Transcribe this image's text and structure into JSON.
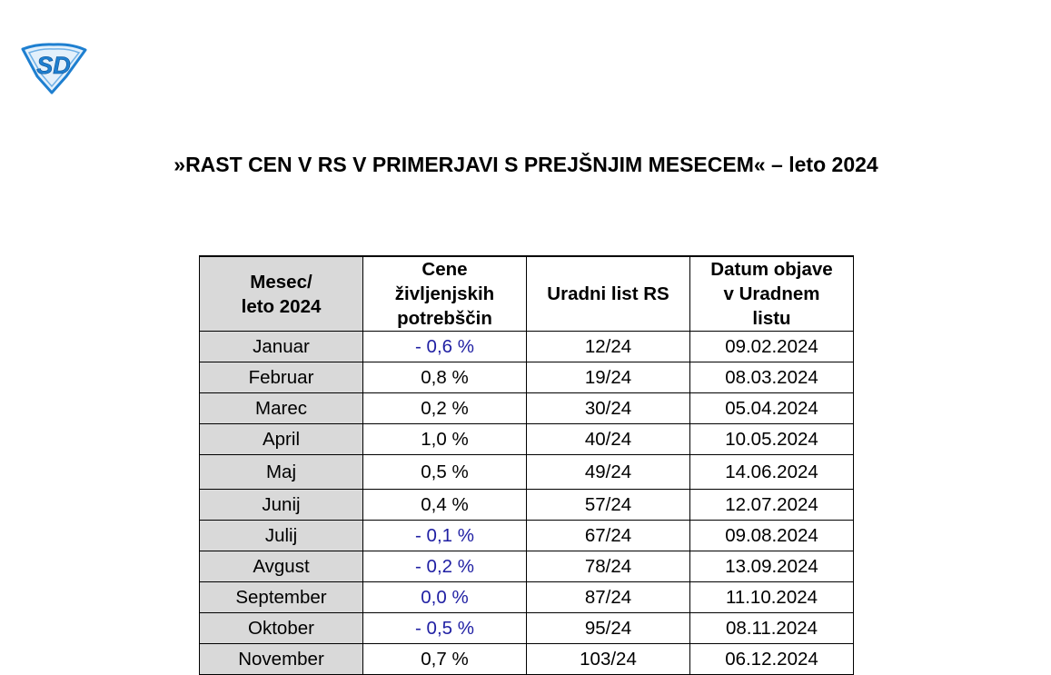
{
  "title": "»RAST CEN V RS V PRIMERJAVI S PREJŠNJIM MESECEM« – leto 2024",
  "logo": {
    "icon": "sd-shield-logo",
    "text": "SD",
    "color": "#1e7fd0"
  },
  "table": {
    "headers": [
      [
        "Mesec/",
        "leto 2024"
      ],
      [
        "Cene",
        "življenjskih",
        "potrebščin"
      ],
      [
        "Uradni list RS"
      ],
      [
        "Datum objave",
        "v Uradnem",
        "listu"
      ]
    ],
    "rows": [
      {
        "month": "Januar",
        "rate": "- 0,6 %",
        "gazette": "12/24",
        "date": "09.02.2024",
        "negative": true
      },
      {
        "month": "Februar",
        "rate": "0,8 %",
        "gazette": "19/24",
        "date": "08.03.2024",
        "negative": false
      },
      {
        "month": "Marec",
        "rate": "0,2 %",
        "gazette": "30/24",
        "date": "05.04.2024",
        "negative": false
      },
      {
        "month": "April",
        "rate": "1,0 %",
        "gazette": "40/24",
        "date": "10.05.2024",
        "negative": false
      },
      {
        "month": "Maj",
        "rate": "0,5 %",
        "gazette": "49/24",
        "date": "14.06.2024",
        "negative": false
      },
      {
        "month": "Junij",
        "rate": "0,4 %",
        "gazette": "57/24",
        "date": "12.07.2024",
        "negative": false
      },
      {
        "month": "Julij",
        "rate": "- 0,1 %",
        "gazette": "67/24",
        "date": "09.08.2024",
        "negative": true
      },
      {
        "month": "Avgust",
        "rate": "- 0,2 %",
        "gazette": "78/24",
        "date": "13.09.2024",
        "negative": true
      },
      {
        "month": "September",
        "rate": "0,0 %",
        "gazette": "87/24",
        "date": "11.10.2024",
        "negative": true
      },
      {
        "month": "Oktober",
        "rate": "- 0,5 %",
        "gazette": "95/24",
        "date": "08.11.2024",
        "negative": true
      },
      {
        "month": "November",
        "rate": "0,7 %",
        "gazette": "103/24",
        "date": "06.12.2024",
        "negative": false
      }
    ]
  },
  "colors": {
    "header_shade": "#d9d9d9",
    "negative_rate": "#1f1fa3",
    "logo_blue": "#1e7fd0"
  }
}
